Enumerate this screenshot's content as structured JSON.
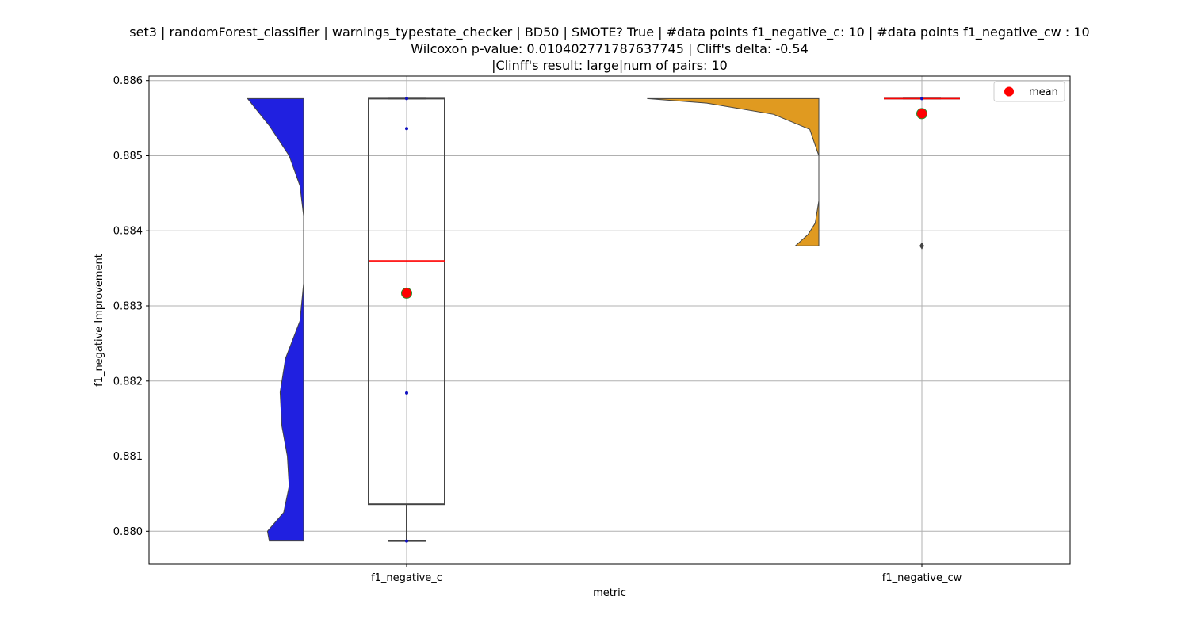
{
  "chart_data": {
    "type": "violin+box",
    "title_lines": [
      "set3 | randomForest_classifier | warnings_typestate_checker | BD50 | SMOTE? True | #data points f1_negative_c: 10 | #data points f1_negative_cw : 10",
      "Wilcoxon p-value: 0.010402771787637745 | Cliff's delta: -0.54",
      "|Clinff's result: large|num of pairs: 10"
    ],
    "xlabel": "metric",
    "ylabel": "f1_negative Improvement",
    "categories": [
      "f1_negative_c",
      "f1_negative_cw"
    ],
    "ylim": [
      0.87956,
      0.88606
    ],
    "yticks": [
      0.88,
      0.881,
      0.882,
      0.883,
      0.884,
      0.885,
      0.886
    ],
    "ytick_labels": [
      "0.880",
      "0.881",
      "0.882",
      "0.883",
      "0.884",
      "0.885",
      "0.886"
    ],
    "grid": true,
    "legend": {
      "placement": "upper right",
      "entries": [
        {
          "label": "mean",
          "color": "#ff0000"
        }
      ]
    },
    "series": [
      {
        "category": "f1_negative_c",
        "violin_color": "#2020e0",
        "violin_side": "left",
        "violin_range": [
          0.87987,
          0.88576
        ],
        "violin_profile": [
          [
            0.87987,
            0.19
          ],
          [
            0.88,
            0.2
          ],
          [
            0.88025,
            0.11
          ],
          [
            0.8806,
            0.08
          ],
          [
            0.881,
            0.09
          ],
          [
            0.8814,
            0.12
          ],
          [
            0.88185,
            0.13
          ],
          [
            0.8823,
            0.1
          ],
          [
            0.8828,
            0.02
          ],
          [
            0.8833,
            0.0
          ],
          [
            0.8838,
            0.0
          ],
          [
            0.8842,
            0.0
          ],
          [
            0.8846,
            0.02
          ],
          [
            0.885,
            0.08
          ],
          [
            0.8854,
            0.19
          ],
          [
            0.88576,
            0.31
          ]
        ],
        "box": {
          "whisker_low": 0.87987,
          "q1": 0.88036,
          "median": 0.8836,
          "q3": 0.88576,
          "whisker_high": 0.88576
        },
        "mean": 0.88317,
        "points": [
          0.88576,
          0.88536,
          0.88184,
          0.87987
        ]
      },
      {
        "category": "f1_negative_cw",
        "violin_color": "#e09a20",
        "violin_side": "left",
        "violin_range": [
          0.8838,
          0.88576
        ],
        "violin_profile": [
          [
            0.8838,
            0.13
          ],
          [
            0.88395,
            0.06
          ],
          [
            0.8841,
            0.02
          ],
          [
            0.8844,
            0.0
          ],
          [
            0.885,
            0.0
          ],
          [
            0.88535,
            0.05
          ],
          [
            0.88555,
            0.25
          ],
          [
            0.8857,
            0.62
          ],
          [
            0.88576,
            0.95
          ]
        ],
        "box": {
          "whisker_low": 0.88576,
          "q1": 0.88576,
          "median": 0.88576,
          "q3": 0.88576,
          "whisker_high": 0.88576
        },
        "mean": 0.88556,
        "outliers": [
          0.8838
        ],
        "points": [
          0.88576
        ]
      }
    ]
  }
}
